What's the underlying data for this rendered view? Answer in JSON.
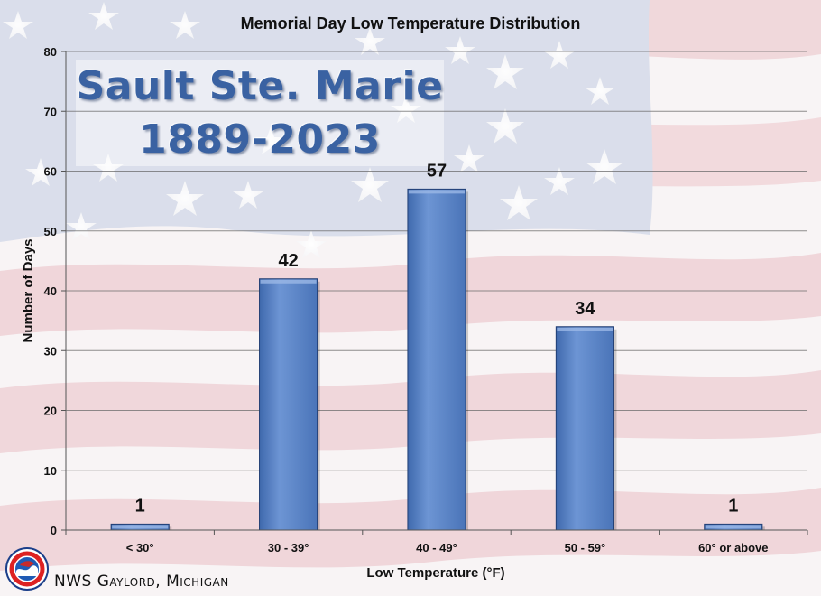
{
  "chart_data": {
    "type": "bar",
    "title": "Memorial Day Low Temperature Distribution",
    "xlabel": "Low Temperature (°F)",
    "ylabel": "Number of Days",
    "categories": [
      "< 30°",
      "30 - 39°",
      "40 - 49°",
      "50 - 59°",
      "60° or above"
    ],
    "values": [
      1,
      42,
      57,
      34,
      1
    ],
    "ylim": [
      0,
      80
    ],
    "yticks": [
      "0",
      "10",
      "20",
      "30",
      "40",
      "50",
      "60",
      "70",
      "80"
    ],
    "data_labels": [
      "1",
      "42",
      "57",
      "34",
      "1"
    ],
    "grid": true,
    "bar_color": "#5b86c7",
    "bar_edge_color": "#1f3d73"
  },
  "overlay": {
    "station": "Sault Ste. Marie",
    "years": "1889-2023"
  },
  "footer": {
    "credit": "NWS Gaylord, Michigan"
  }
}
